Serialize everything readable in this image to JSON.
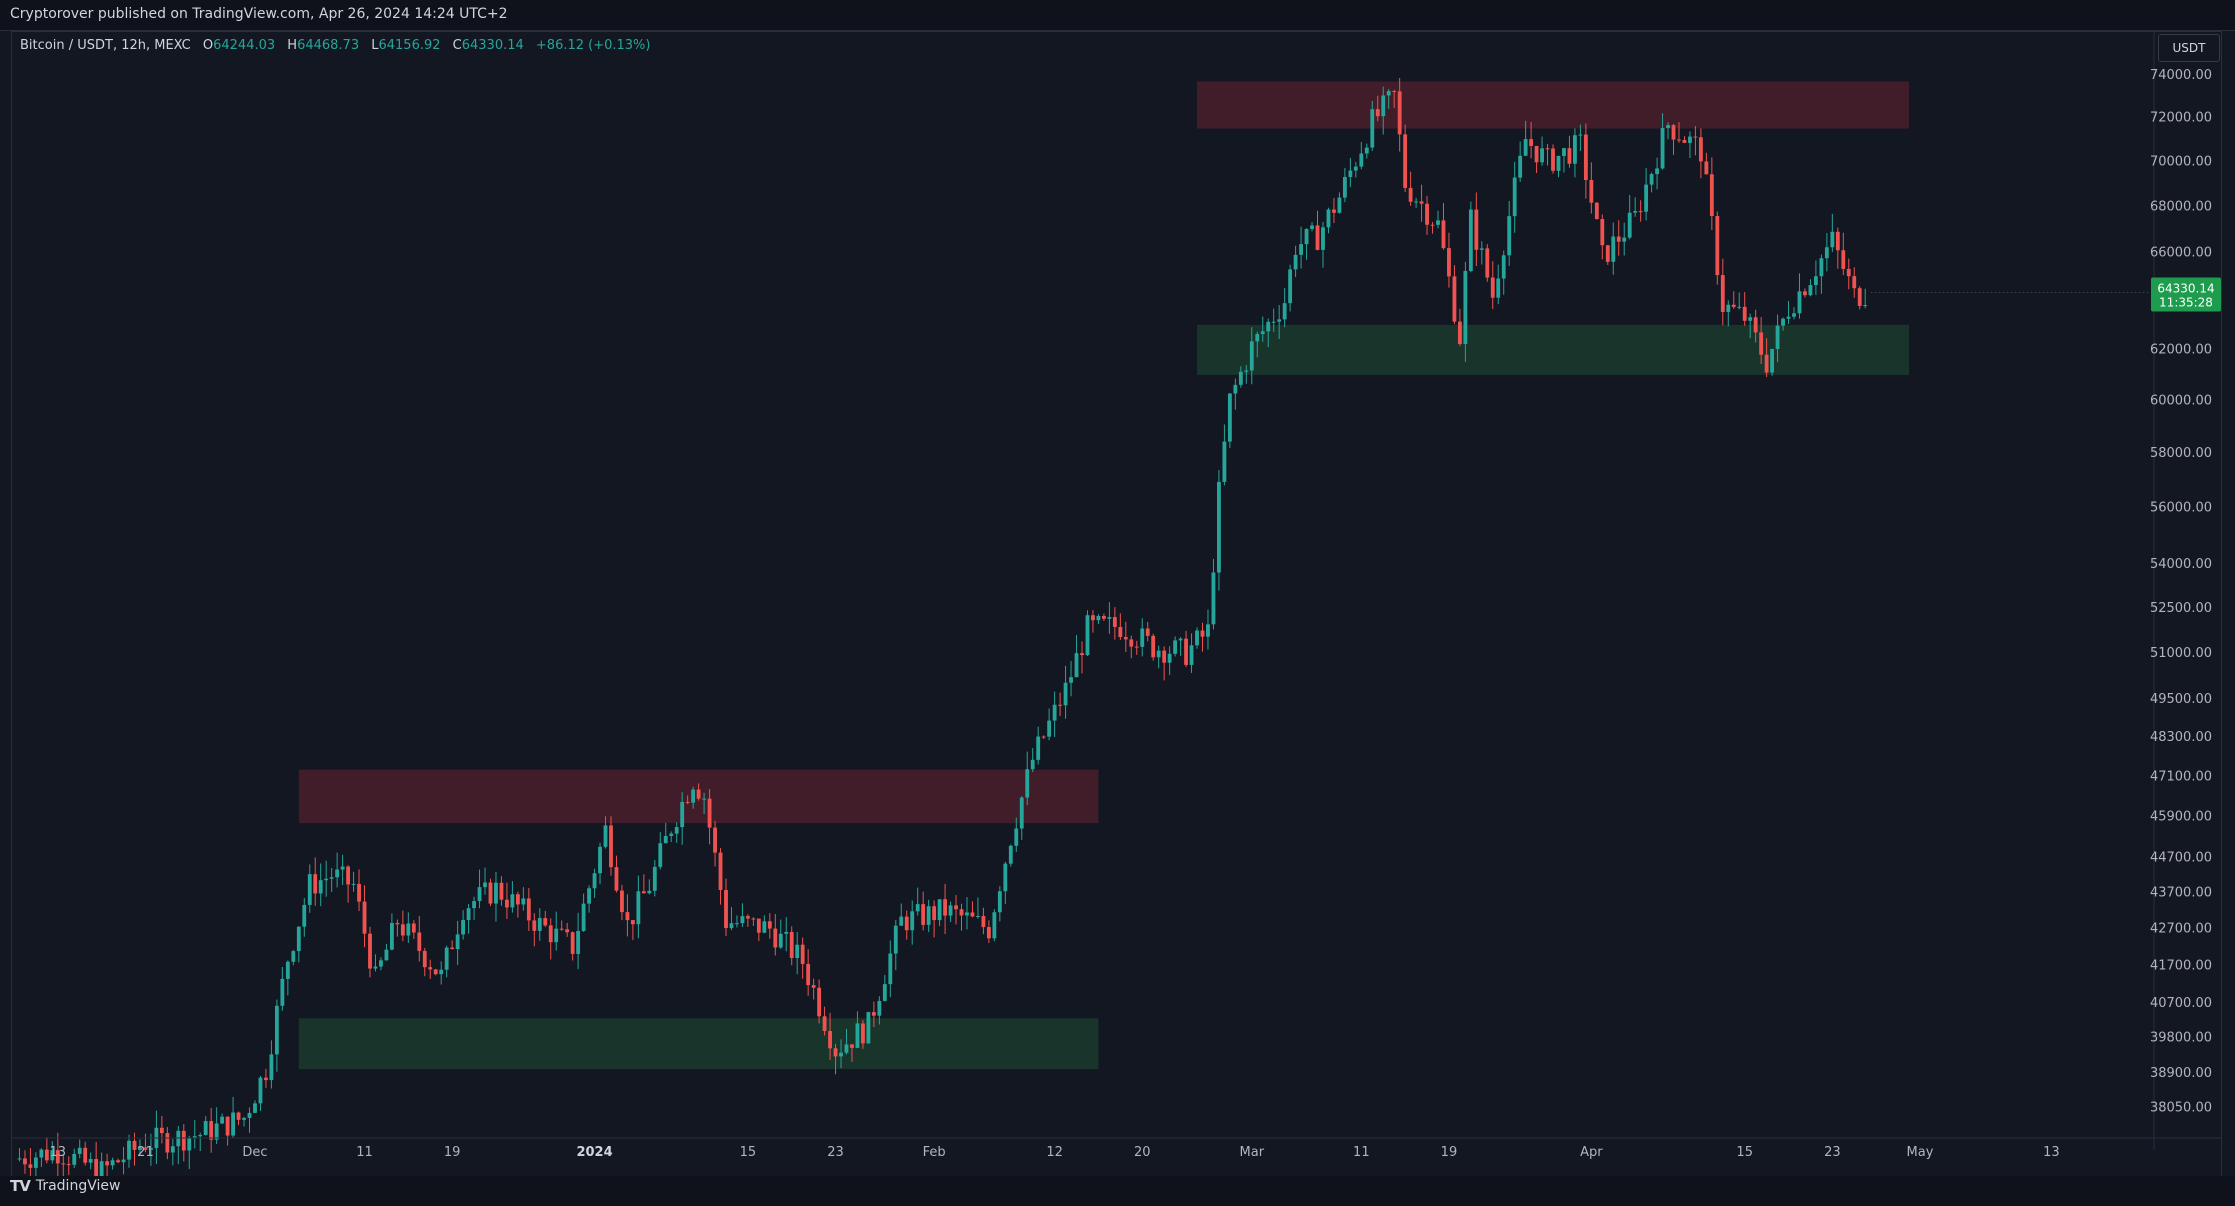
{
  "header": {
    "published_text": "Cryptorover published on TradingView.com, Apr 26, 2024 14:24 UTC+2"
  },
  "legend": {
    "symbol": "Bitcoin / USDT, 12h, MEXC",
    "o_label": "O",
    "o_value": "64244.03",
    "h_label": "H",
    "h_value": "64468.73",
    "l_label": "L",
    "l_value": "64156.92",
    "c_label": "C",
    "c_value": "64330.14",
    "change": "+86.12 (+0.13%)"
  },
  "price_axis": {
    "currency": "USDT",
    "last_price": "64330.14",
    "countdown": "11:35:28"
  },
  "footer": {
    "brand": "TradingView"
  },
  "colors": {
    "background": "#131722",
    "up": "#26a69a",
    "down": "#ef5350",
    "resistance_zone": "#4a1f2a",
    "support_zone": "#1b3a2c",
    "last_price_badge": "#1e9c4d"
  },
  "chart_data": {
    "type": "candlestick",
    "symbol": "Bitcoin / USDT",
    "interval": "12h",
    "exchange": "MEXC",
    "y_scale": "log",
    "ylim": [
      37500,
      75500
    ],
    "xlim": [
      "2023-11-09",
      "2024-05-22"
    ],
    "y_ticks": [
      "74000.00",
      "72000.00",
      "70000.00",
      "68000.00",
      "66000.00",
      "62000.00",
      "60000.00",
      "58000.00",
      "56000.00",
      "54000.00",
      "52500.00",
      "51000.00",
      "49500.00",
      "48300.00",
      "47100.00",
      "45900.00",
      "44700.00",
      "43700.00",
      "42700.00",
      "41700.00",
      "40700.00",
      "39800.00",
      "38900.00",
      "38050.00"
    ],
    "x_ticks": [
      {
        "date": "2023-11-13",
        "label": "13"
      },
      {
        "date": "2023-11-21",
        "label": "21"
      },
      {
        "date": "2023-12-01",
        "label": "Dec"
      },
      {
        "date": "2023-12-11",
        "label": "11"
      },
      {
        "date": "2023-12-19",
        "label": "19"
      },
      {
        "date": "2024-01-01",
        "label": "2024",
        "bold": true
      },
      {
        "date": "2024-01-15",
        "label": "15"
      },
      {
        "date": "2024-01-23",
        "label": "23"
      },
      {
        "date": "2024-02-01",
        "label": "Feb"
      },
      {
        "date": "2024-02-12",
        "label": "12"
      },
      {
        "date": "2024-02-20",
        "label": "20"
      },
      {
        "date": "2024-03-01",
        "label": "Mar"
      },
      {
        "date": "2024-03-11",
        "label": "11"
      },
      {
        "date": "2024-03-19",
        "label": "19"
      },
      {
        "date": "2024-04-01",
        "label": "Apr"
      },
      {
        "date": "2024-04-15",
        "label": "15"
      },
      {
        "date": "2024-04-23",
        "label": "23"
      },
      {
        "date": "2024-05-01",
        "label": "May"
      },
      {
        "date": "2024-05-13",
        "label": "13"
      }
    ],
    "zones": [
      {
        "kind": "resistance",
        "from": "2023-12-05",
        "to": "2024-02-16",
        "low": 45700,
        "high": 47300
      },
      {
        "kind": "support",
        "from": "2023-12-05",
        "to": "2024-02-16",
        "low": 39000,
        "high": 40300
      },
      {
        "kind": "resistance",
        "from": "2024-02-25",
        "to": "2024-04-30",
        "low": 71500,
        "high": 73700
      },
      {
        "kind": "support",
        "from": "2024-02-25",
        "to": "2024-04-30",
        "low": 61000,
        "high": 63000
      }
    ],
    "close_path": [
      [
        "2023-11-09",
        36800
      ],
      [
        "2023-11-13",
        37000
      ],
      [
        "2023-11-17",
        36500
      ],
      [
        "2023-11-21",
        37200
      ],
      [
        "2023-11-26",
        37400
      ],
      [
        "2023-11-30",
        37800
      ],
      [
        "2023-12-02",
        39000
      ],
      [
        "2023-12-04",
        41900
      ],
      [
        "2023-12-06",
        43900
      ],
      [
        "2023-12-08",
        44200
      ],
      [
        "2023-12-10",
        43900
      ],
      [
        "2023-12-12",
        41300
      ],
      [
        "2023-12-14",
        42900
      ],
      [
        "2023-12-18",
        41400
      ],
      [
        "2023-12-20",
        43300
      ],
      [
        "2023-12-23",
        43800
      ],
      [
        "2023-12-27",
        42800
      ],
      [
        "2023-12-30",
        42200
      ],
      [
        "2024-01-02",
        45500
      ],
      [
        "2024-01-04",
        42800
      ],
      [
        "2024-01-06",
        43900
      ],
      [
        "2024-01-08",
        45600
      ],
      [
        "2024-01-10",
        47000
      ],
      [
        "2024-01-11",
        46500
      ],
      [
        "2024-01-13",
        42900
      ],
      [
        "2024-01-17",
        42700
      ],
      [
        "2024-01-20",
        41800
      ],
      [
        "2024-01-23",
        39500
      ],
      [
        "2024-01-26",
        40100
      ],
      [
        "2024-01-29",
        42900
      ],
      [
        "2024-02-02",
        43200
      ],
      [
        "2024-02-06",
        42700
      ],
      [
        "2024-02-08",
        45300
      ],
      [
        "2024-02-10",
        47600
      ],
      [
        "2024-02-13",
        49800
      ],
      [
        "2024-02-15",
        51800
      ],
      [
        "2024-02-18",
        51900
      ],
      [
        "2024-02-21",
        51200
      ],
      [
        "2024-02-24",
        51000
      ],
      [
        "2024-02-26",
        51700
      ],
      [
        "2024-02-27",
        56500
      ],
      [
        "2024-02-28",
        60000
      ],
      [
        "2024-03-01",
        62100
      ],
      [
        "2024-03-04",
        64000
      ],
      [
        "2024-03-05",
        66300
      ],
      [
        "2024-03-07",
        66700
      ],
      [
        "2024-03-09",
        68400
      ],
      [
        "2024-03-12",
        71800
      ],
      [
        "2024-03-14",
        73000
      ],
      [
        "2024-03-15",
        69000
      ],
      [
        "2024-03-18",
        67200
      ],
      [
        "2024-03-20",
        62500
      ],
      [
        "2024-03-21",
        67400
      ],
      [
        "2024-03-23",
        64200
      ],
      [
        "2024-03-26",
        71000
      ],
      [
        "2024-03-28",
        70000
      ],
      [
        "2024-03-31",
        70700
      ],
      [
        "2024-04-02",
        65800
      ],
      [
        "2024-04-05",
        67500
      ],
      [
        "2024-04-08",
        71700
      ],
      [
        "2024-04-11",
        70500
      ],
      [
        "2024-04-13",
        63800
      ],
      [
        "2024-04-15",
        63300
      ],
      [
        "2024-04-17",
        61500
      ],
      [
        "2024-04-19",
        63700
      ],
      [
        "2024-04-21",
        65000
      ],
      [
        "2024-04-23",
        66500
      ],
      [
        "2024-04-25",
        64200
      ],
      [
        "2024-04-26",
        64330
      ]
    ],
    "last_close": 64330.14
  }
}
